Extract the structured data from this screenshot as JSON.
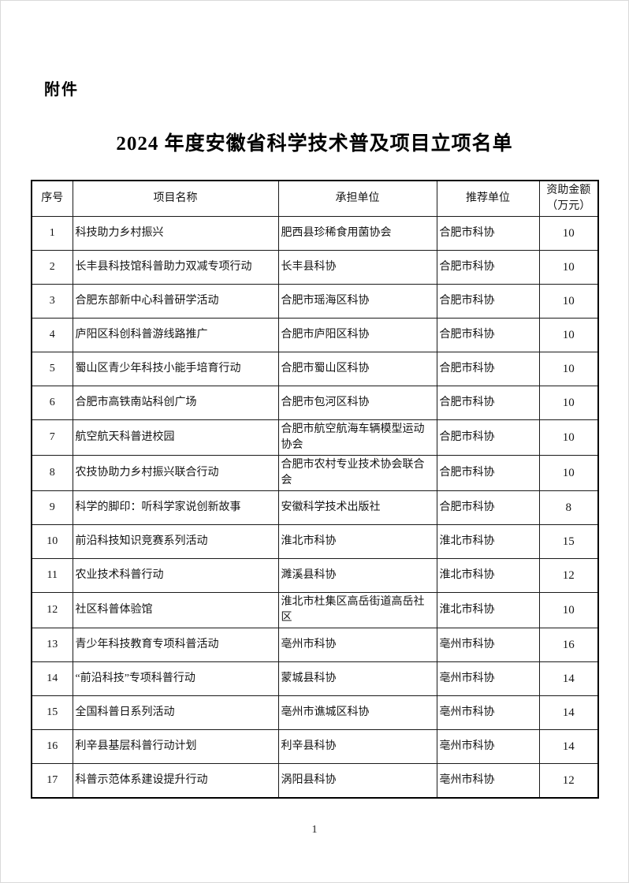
{
  "page": {
    "attachment_label": "附件",
    "title": "2024 年度安徽省科学技术普及项目立项名单",
    "page_number": "1"
  },
  "table": {
    "headers": [
      "序号",
      "项目名称",
      "承担单位",
      "推荐单位",
      "资助金额（万元）"
    ],
    "rows": [
      {
        "no": "1",
        "project": "科技助力乡村振兴",
        "undertaker": "肥西县珍稀食用菌协会",
        "recommender": "合肥市科协",
        "amount": "10"
      },
      {
        "no": "2",
        "project": "长丰县科技馆科普助力双减专项行动",
        "undertaker": "长丰县科协",
        "recommender": "合肥市科协",
        "amount": "10"
      },
      {
        "no": "3",
        "project": "合肥东部新中心科普研学活动",
        "undertaker": "合肥市瑶海区科协",
        "recommender": "合肥市科协",
        "amount": "10"
      },
      {
        "no": "4",
        "project": "庐阳区科创科普游线路推广",
        "undertaker": "合肥市庐阳区科协",
        "recommender": "合肥市科协",
        "amount": "10"
      },
      {
        "no": "5",
        "project": "蜀山区青少年科技小能手培育行动",
        "undertaker": "合肥市蜀山区科协",
        "recommender": "合肥市科协",
        "amount": "10"
      },
      {
        "no": "6",
        "project": "合肥市高铁南站科创广场",
        "undertaker": "合肥市包河区科协",
        "recommender": "合肥市科协",
        "amount": "10"
      },
      {
        "no": "7",
        "project": "航空航天科普进校园",
        "undertaker": "合肥市航空航海车辆模型运动协会",
        "recommender": "合肥市科协",
        "amount": "10"
      },
      {
        "no": "8",
        "project": "农技协助力乡村振兴联合行动",
        "undertaker": "合肥市农村专业技术协会联合会",
        "recommender": "合肥市科协",
        "amount": "10"
      },
      {
        "no": "9",
        "project": "科学的脚印：听科学家说创新故事",
        "undertaker": "安徽科学技术出版社",
        "recommender": "合肥市科协",
        "amount": "8"
      },
      {
        "no": "10",
        "project": "前沿科技知识竞赛系列活动",
        "undertaker": "淮北市科协",
        "recommender": "淮北市科协",
        "amount": "15"
      },
      {
        "no": "11",
        "project": "农业技术科普行动",
        "undertaker": "濉溪县科协",
        "recommender": "淮北市科协",
        "amount": "12"
      },
      {
        "no": "12",
        "project": "社区科普体验馆",
        "undertaker": "淮北市杜集区高岳街道高岳社区",
        "recommender": "淮北市科协",
        "amount": "10"
      },
      {
        "no": "13",
        "project": "青少年科技教育专项科普活动",
        "undertaker": "亳州市科协",
        "recommender": "亳州市科协",
        "amount": "16"
      },
      {
        "no": "14",
        "project": "“前沿科技”专项科普行动",
        "undertaker": "蒙城县科协",
        "recommender": "亳州市科协",
        "amount": "14"
      },
      {
        "no": "15",
        "project": "全国科普日系列活动",
        "undertaker": "亳州市谯城区科协",
        "recommender": "亳州市科协",
        "amount": "14"
      },
      {
        "no": "16",
        "project": "利辛县基层科普行动计划",
        "undertaker": "利辛县科协",
        "recommender": "亳州市科协",
        "amount": "14"
      },
      {
        "no": "17",
        "project": "科普示范体系建设提升行动",
        "undertaker": "涡阳县科协",
        "recommender": "亳州市科协",
        "amount": "12"
      }
    ]
  }
}
